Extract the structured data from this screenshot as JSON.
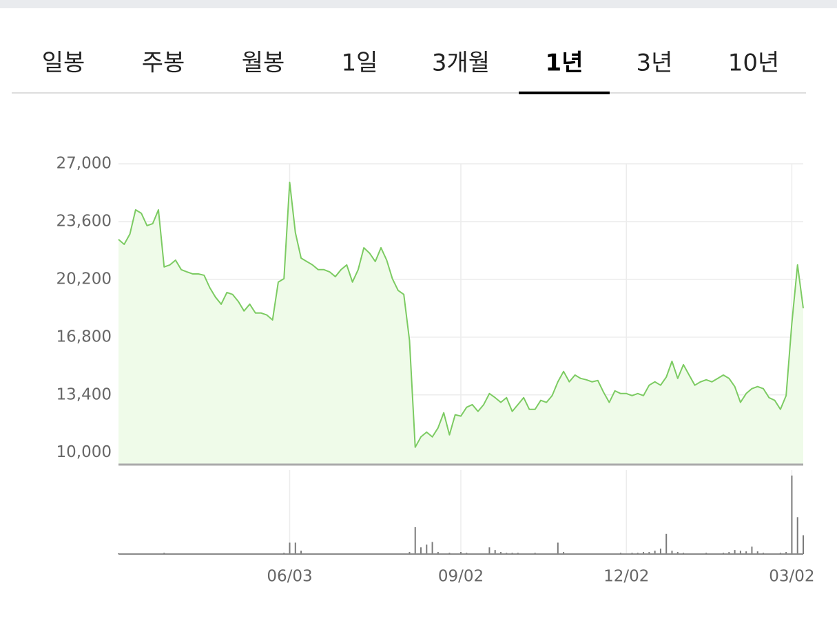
{
  "tabs": {
    "items": [
      "일봉",
      "주봉",
      "월봉",
      "1일",
      "3개월",
      "1년",
      "3년",
      "10년"
    ],
    "selected": 5
  },
  "chart_data": [
    {
      "type": "area",
      "color": "#7ccb62",
      "fill": "#effbe9",
      "ylim": [
        9300,
        27000
      ],
      "yticks": [
        {
          "value": 10000,
          "label": "10,000"
        },
        {
          "value": 13400,
          "label": "13,400"
        },
        {
          "value": 16800,
          "label": "16,800"
        },
        {
          "value": 20200,
          "label": "20,200"
        },
        {
          "value": 23600,
          "label": "23,600"
        },
        {
          "value": 27000,
          "label": "27,000"
        }
      ],
      "grid": true,
      "values": [
        22550,
        22260,
        22870,
        24290,
        24090,
        23360,
        23480,
        24290,
        20930,
        21050,
        21330,
        20770,
        20640,
        20520,
        20520,
        20440,
        19710,
        19150,
        18740,
        19430,
        19310,
        18900,
        18340,
        18740,
        18220,
        18220,
        18100,
        17810,
        20040,
        20240,
        25910,
        22950,
        21450,
        21250,
        21050,
        20770,
        20770,
        20640,
        20360,
        20770,
        21050,
        20040,
        20770,
        22060,
        21740,
        21250,
        22060,
        21330,
        20240,
        19550,
        19310,
        16600,
        10320,
        10930,
        11210,
        10930,
        11460,
        12350,
        11050,
        12230,
        12150,
        12670,
        12830,
        12430,
        12830,
        13480,
        13240,
        12960,
        13240,
        12430,
        12830,
        13240,
        12550,
        12550,
        13080,
        12960,
        13360,
        14170,
        14780,
        14170,
        14570,
        14370,
        14290,
        14170,
        14250,
        13560,
        12960,
        13640,
        13480,
        13480,
        13360,
        13480,
        13360,
        13970,
        14170,
        13970,
        14450,
        15380,
        14370,
        15180,
        14570,
        13970,
        14170,
        14290,
        14170,
        14370,
        14570,
        14370,
        13890,
        12960,
        13480,
        13770,
        13890,
        13770,
        13240,
        13080,
        12550,
        13360,
        17610,
        21050,
        18500
      ]
    },
    {
      "type": "bar",
      "color": "#7a7a7a",
      "ylim": [
        0,
        120
      ],
      "categories": [
        null,
        null,
        null,
        null,
        null,
        null,
        null,
        null,
        null,
        null,
        null,
        null,
        null,
        null,
        null,
        null,
        null,
        null,
        null,
        null,
        null,
        null,
        null,
        null,
        null,
        null,
        null,
        null,
        null,
        null,
        "06/03",
        null,
        null,
        null,
        null,
        null,
        null,
        null,
        null,
        null,
        null,
        null,
        null,
        null,
        null,
        null,
        null,
        null,
        null,
        null,
        null,
        null,
        null,
        null,
        null,
        null,
        null,
        null,
        null,
        null,
        "09/02",
        null,
        null,
        null,
        null,
        null,
        null,
        null,
        null,
        null,
        null,
        null,
        null,
        null,
        null,
        null,
        null,
        null,
        null,
        null,
        null,
        null,
        null,
        null,
        null,
        null,
        null,
        null,
        null,
        "12/02",
        null,
        null,
        null,
        null,
        null,
        null,
        null,
        null,
        null,
        null,
        null,
        null,
        null,
        null,
        null,
        null,
        null,
        null,
        null,
        null,
        null,
        null,
        null,
        null,
        null,
        null,
        null,
        null,
        "03/02",
        null,
        null
      ],
      "values": [
        1,
        1,
        1,
        1,
        1,
        1,
        1,
        1,
        2,
        1,
        1,
        1,
        1,
        1,
        1,
        1,
        1,
        1,
        1,
        1,
        1,
        1,
        1,
        1,
        1,
        1,
        1,
        1,
        1,
        2,
        17,
        17,
        5,
        1,
        1,
        1,
        1,
        1,
        1,
        1,
        1,
        1,
        1,
        1,
        1,
        1,
        1,
        1,
        1,
        1,
        1,
        3,
        40,
        10,
        14,
        18,
        3,
        1,
        2,
        1,
        3,
        2,
        1,
        1,
        1,
        10,
        6,
        3,
        2,
        2,
        2,
        1,
        1,
        2,
        1,
        1,
        1,
        17,
        3,
        1,
        1,
        1,
        1,
        1,
        1,
        1,
        1,
        1,
        2,
        1,
        2,
        2,
        3,
        3,
        5,
        8,
        30,
        5,
        3,
        2,
        1,
        1,
        1,
        2,
        1,
        1,
        2,
        3,
        6,
        5,
        4,
        11,
        4,
        2,
        1,
        1,
        2,
        3,
        117,
        55,
        28
      ]
    }
  ]
}
